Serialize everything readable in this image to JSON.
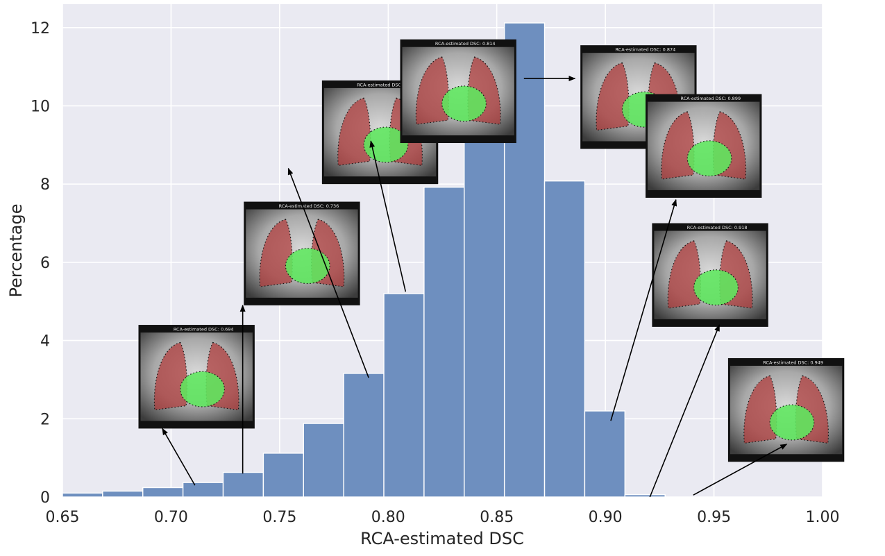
{
  "chart_data": {
    "type": "bar",
    "title": "",
    "xlabel": "RCA-estimated DSC",
    "ylabel": "Percentage",
    "xlim": [
      0.65,
      1.0
    ],
    "ylim": [
      0,
      12.6
    ],
    "grid": true,
    "xticks": [
      "0.65",
      "0.70",
      "0.75",
      "0.80",
      "0.85",
      "0.90",
      "0.95",
      "1.00"
    ],
    "yticks": [
      "0",
      "2",
      "4",
      "6",
      "8",
      "10",
      "12"
    ],
    "bin_width": 0.0185,
    "bins": [
      {
        "start": 0.65,
        "value": 0.1
      },
      {
        "start": 0.6685,
        "value": 0.15
      },
      {
        "start": 0.687,
        "value": 0.24
      },
      {
        "start": 0.7055,
        "value": 0.37
      },
      {
        "start": 0.724,
        "value": 0.63
      },
      {
        "start": 0.7425,
        "value": 1.12
      },
      {
        "start": 0.761,
        "value": 1.88
      },
      {
        "start": 0.7795,
        "value": 3.16
      },
      {
        "start": 0.798,
        "value": 5.2
      },
      {
        "start": 0.8165,
        "value": 7.92
      },
      {
        "start": 0.835,
        "value": 10.88
      },
      {
        "start": 0.8535,
        "value": 12.12
      },
      {
        "start": 0.872,
        "value": 8.08
      },
      {
        "start": 0.8905,
        "value": 2.2
      },
      {
        "start": 0.909,
        "value": 0.06
      }
    ],
    "colors": {
      "bar": "#6e8fbf",
      "background": "#eaeaf2",
      "grid": "#ffffff",
      "lung_overlay": "#b03a3a",
      "heart_overlay": "#5fe85f",
      "contour": "#151515",
      "arrow": "#000000"
    },
    "annotations": [
      {
        "caption": "RCA-estimated DSC: 0.694",
        "from": [
          0.711,
          0.3
        ],
        "to": [
          0.696,
          1.75
        ]
      },
      {
        "caption": "RCA-estimated DSC: 0.736",
        "from": [
          0.733,
          0.6
        ],
        "to": [
          0.733,
          4.9
        ]
      },
      {
        "caption": "RCA-estimated DSC: 0.786",
        "from": [
          0.791,
          3.05
        ],
        "to": [
          0.754,
          8.4
        ]
      },
      {
        "caption": "RCA-estimated DSC: 0.814",
        "from": [
          0.808,
          5.25
        ],
        "to": [
          0.792,
          9.1
        ]
      },
      {
        "caption": "RCA-estimated DSC: 0.874",
        "from": [
          0.8625,
          10.7
        ],
        "to": [
          0.886,
          10.7
        ]
      },
      {
        "caption": "RCA-estimated DSC: 0.899",
        "from": [
          0.9025,
          1.95
        ],
        "to": [
          0.9325,
          7.6
        ]
      },
      {
        "caption": "RCA-estimated DSC: 0.918",
        "from": [
          0.9205,
          0.0
        ],
        "to": [
          0.9525,
          4.4
        ]
      },
      {
        "caption": "RCA-estimated DSC: 0.949",
        "from": [
          0.9405,
          0.05
        ],
        "to": [
          0.9835,
          1.35
        ]
      }
    ]
  }
}
